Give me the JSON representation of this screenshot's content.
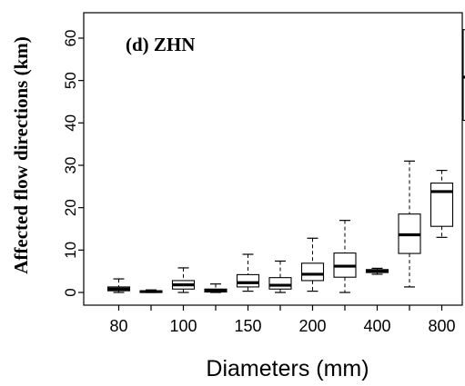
{
  "chart_data": {
    "type": "boxplot",
    "title": "(d) ZHN",
    "xlabel": "Diameters (mm)",
    "ylabel": "Affected flow directions (km)",
    "ylim": [
      -3,
      66
    ],
    "y_ticks": [
      0,
      10,
      20,
      30,
      40,
      50,
      60
    ],
    "x_tick_labels": [
      "80",
      "",
      "100",
      "",
      "150",
      "",
      "200",
      "",
      "400",
      "",
      "800",
      ""
    ],
    "boxes": [
      {
        "min": 0.0,
        "q1": 0.4,
        "median": 0.8,
        "q3": 1.3,
        "max": 3.2
      },
      {
        "min": 0.0,
        "q1": 0.0,
        "median": 0.2,
        "q3": 0.4,
        "max": 0.6
      },
      {
        "min": 0.0,
        "q1": 0.8,
        "median": 1.8,
        "q3": 2.8,
        "max": 5.8
      },
      {
        "min": 0.0,
        "q1": 0.1,
        "median": 0.4,
        "q3": 0.8,
        "max": 2.0
      },
      {
        "min": 0.3,
        "q1": 1.3,
        "median": 2.3,
        "q3": 4.2,
        "max": 9.0
      },
      {
        "min": 0.0,
        "q1": 0.8,
        "median": 1.7,
        "q3": 3.5,
        "max": 7.4
      },
      {
        "min": 0.3,
        "q1": 2.8,
        "median": 4.3,
        "q3": 6.9,
        "max": 12.8
      },
      {
        "min": 0.0,
        "q1": 3.6,
        "median": 6.2,
        "q3": 9.3,
        "max": 17.0
      },
      {
        "min": 4.3,
        "q1": 4.7,
        "median": 5.0,
        "q3": 5.4,
        "max": 5.7
      },
      {
        "min": 1.3,
        "q1": 9.2,
        "median": 13.6,
        "q3": 18.5,
        "max": 31.0
      },
      {
        "min": 13.0,
        "q1": 15.6,
        "median": 23.8,
        "q3": 25.8,
        "max": 28.8
      },
      {
        "min": 27.0,
        "q1": 40.6,
        "median": 50.8,
        "q3": 62.0,
        "max": 64.6
      }
    ]
  }
}
